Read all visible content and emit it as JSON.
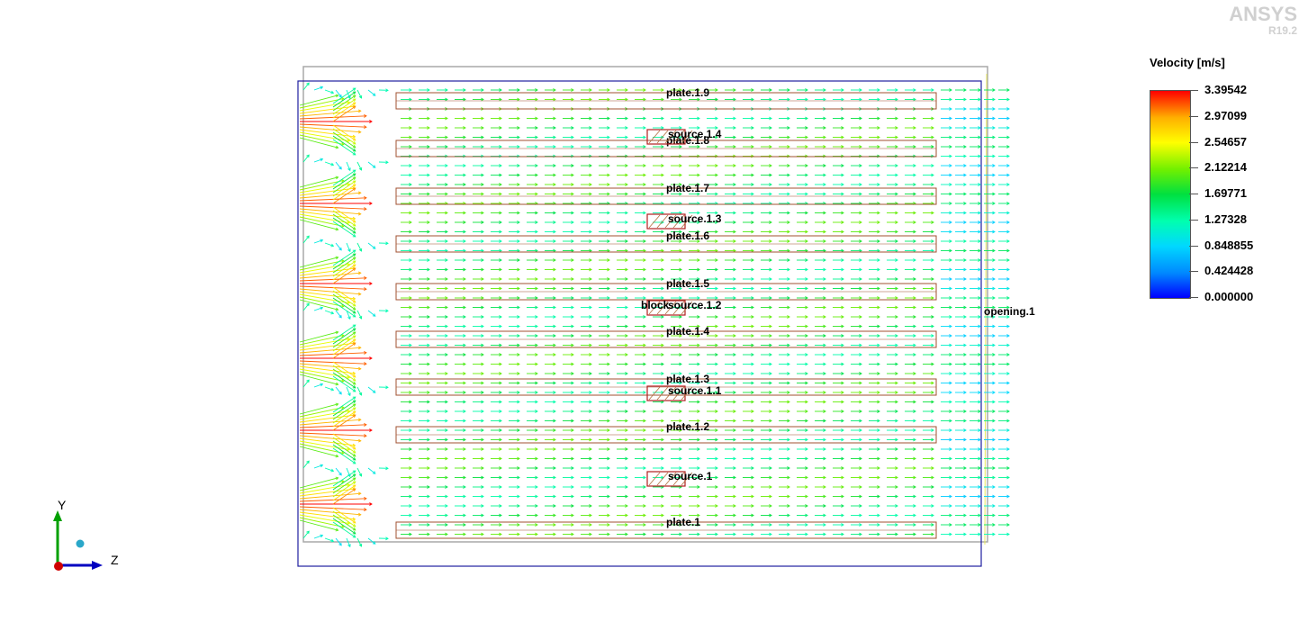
{
  "brand": {
    "name": "ANSYS",
    "version": "R19.2"
  },
  "legend": {
    "title": "Velocity [m/s]",
    "values": [
      "3.39542",
      "2.97099",
      "2.54657",
      "2.12214",
      "1.69771",
      "1.27328",
      "0.848855",
      "0.424428",
      "0.000000"
    ]
  },
  "colors": {
    "max": "#ff0000",
    "mid": "#00e040",
    "min": "#0000ff",
    "plate_outline": "#a05030",
    "domain_outline": "#2020a0"
  },
  "plates": [
    "plate.1",
    "plate.1.2",
    "plate.1.3",
    "plate.1.4",
    "plate.1.5",
    "plate.1.6",
    "plate.1.7",
    "plate.1.8",
    "plate.1.9"
  ],
  "sources": [
    "source.1",
    "source.1.1",
    "source.1.2",
    "source.1.3",
    "source.1.4"
  ],
  "block_label": "block",
  "opening_label": "opening.1",
  "axes": {
    "y": "Y",
    "z": "Z"
  }
}
